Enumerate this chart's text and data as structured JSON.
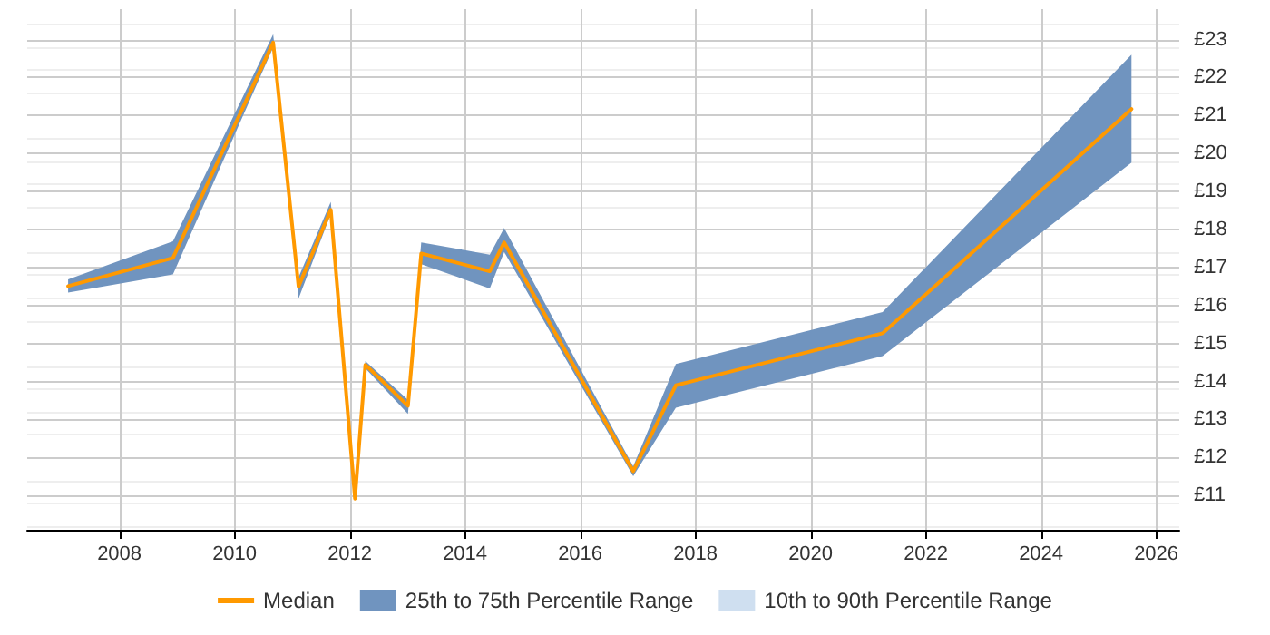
{
  "chart_data": {
    "type": "line",
    "x": [
      2007.11,
      2008.93,
      2010.67,
      2011.11,
      2011.67,
      2012.09,
      2012.27,
      2013.01,
      2013.24,
      2014.43,
      2014.68,
      2016.92,
      2017.66,
      2021.25,
      2025.57
    ],
    "series": [
      {
        "name": "Median",
        "color": "#ff9900",
        "values": [
          16.51,
          17.25,
          22.92,
          16.5,
          18.52,
          10.92,
          14.44,
          13.36,
          17.37,
          16.9,
          17.66,
          11.64,
          13.9,
          15.27,
          21.17
        ]
      },
      {
        "name": "25th to 75th Percentile Range",
        "type": "area",
        "color": "#7094bf",
        "values": [
          null,
          null,
          null,
          null,
          null,
          null,
          null,
          null,
          null,
          null,
          null,
          null,
          null,
          null,
          null
        ],
        "lower": [
          16.34,
          16.82,
          22.79,
          16.18,
          18.41,
          10.85,
          14.35,
          13.15,
          17.09,
          16.45,
          17.41,
          11.51,
          13.31,
          14.67,
          19.76
        ],
        "upper": [
          16.69,
          17.69,
          23.14,
          16.74,
          18.73,
          10.95,
          14.54,
          13.52,
          17.66,
          17.34,
          18.04,
          11.77,
          14.46,
          15.83,
          22.6
        ]
      },
      {
        "name": "10th to 90th Percentile Range",
        "type": "area",
        "color": "#cfdff0",
        "values": [
          null,
          null,
          null,
          null,
          null,
          null,
          null,
          null,
          null,
          null,
          null,
          null,
          null,
          null,
          null
        ]
      }
    ],
    "xlim": [
      2006.4,
      2026.4
    ],
    "xticks": [
      2008,
      2010,
      2012,
      2014,
      2016,
      2018,
      2020,
      2022,
      2024,
      2026
    ],
    "ylim": [
      10.1,
      23.8
    ],
    "yticks": [
      {
        "value": 11,
        "label": "£11"
      },
      {
        "value": 12,
        "label": "£12"
      },
      {
        "value": 13,
        "label": "£13"
      },
      {
        "value": 14,
        "label": "£14"
      },
      {
        "value": 15,
        "label": "£15"
      },
      {
        "value": 16,
        "label": "£16"
      },
      {
        "value": 17,
        "label": "£17"
      },
      {
        "value": 18,
        "label": "£18"
      },
      {
        "value": 19,
        "label": "£19"
      },
      {
        "value": 20,
        "label": "£20"
      },
      {
        "value": 21,
        "label": "£21"
      },
      {
        "value": 22,
        "label": "£22"
      },
      {
        "value": 23,
        "label": "£23"
      }
    ],
    "grid": true,
    "legend": "bottom",
    "marker": "none",
    "line_style": "solid"
  }
}
